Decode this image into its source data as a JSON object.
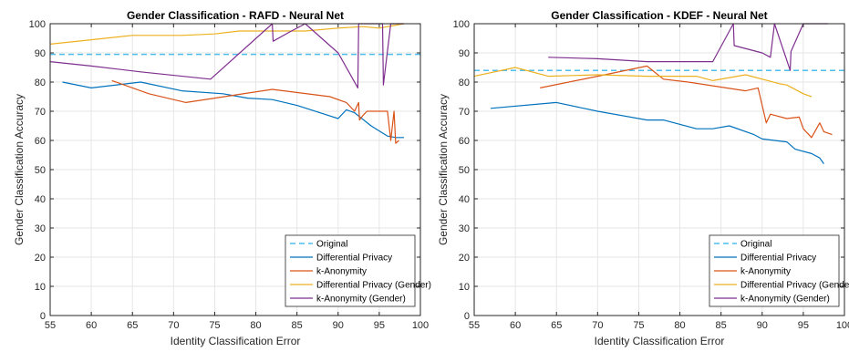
{
  "chart_data": [
    {
      "type": "line",
      "title": "Gender Classification - RAFD - Neural Net",
      "xlabel": "Identity Classification Error",
      "ylabel": "Gender Classification Accuracy",
      "xlim": [
        55,
        100
      ],
      "ylim": [
        0,
        100
      ],
      "xticks": [
        "55",
        "60",
        "65",
        "70",
        "75",
        "80",
        "85",
        "90",
        "95",
        "100"
      ],
      "yticks": [
        "0",
        "10",
        "20",
        "30",
        "40",
        "50",
        "60",
        "70",
        "80",
        "90",
        "100"
      ],
      "grid": true,
      "legend_position": "bottom-right",
      "series": [
        {
          "name": "Original",
          "color": "#4DBEEE",
          "dash": true,
          "x": [
            55,
            100
          ],
          "y": [
            89.5,
            89.5
          ]
        },
        {
          "name": "Differential Privacy",
          "color": "#0072BD",
          "x": [
            56.5,
            60,
            66,
            71,
            76,
            79,
            82,
            85,
            90,
            91,
            92,
            94,
            96,
            97,
            98
          ],
          "y": [
            80,
            78,
            80,
            77,
            76,
            74.5,
            74,
            72,
            67.5,
            70.5,
            69.5,
            65,
            61.5,
            61,
            61
          ]
        },
        {
          "name": "k-Anonymity",
          "color": "#D95319",
          "x": [
            62.5,
            67,
            71.5,
            75,
            82,
            89,
            91,
            92,
            92.5,
            92.6,
            93,
            93.5,
            95,
            96,
            96.4,
            96.8,
            97,
            97.4
          ],
          "y": [
            80.5,
            76,
            73,
            74.5,
            77.5,
            75,
            73,
            70,
            73,
            67,
            68.5,
            70,
            70,
            70,
            60,
            70,
            59,
            60
          ]
        },
        {
          "name": "Differential Privacy (Gender)",
          "color": "#EDB120",
          "x": [
            55,
            60,
            65,
            71,
            75,
            78,
            82,
            86,
            90,
            93,
            95,
            98
          ],
          "y": [
            93,
            94.5,
            96,
            96,
            96.5,
            97.5,
            97.5,
            97.5,
            98.5,
            99,
            98.5,
            100
          ]
        },
        {
          "name": "k-Anonymity (Gender)",
          "color": "#7E2F8E",
          "x": [
            55,
            60,
            66,
            74.5,
            82,
            82.1,
            84,
            86,
            90,
            92.4,
            92.5,
            93,
            95.4,
            95.5,
            96.4,
            96.5,
            98
          ],
          "y": [
            87,
            85.5,
            83.5,
            81,
            100,
            94,
            97,
            100,
            90,
            78,
            100,
            100,
            100,
            79,
            100,
            100,
            100
          ]
        }
      ]
    },
    {
      "type": "line",
      "title": "Gender Classification - KDEF - Neural Net",
      "xlabel": "Identity Classification Error",
      "ylabel": "Gender Classification Accuracy",
      "xlim": [
        55,
        100
      ],
      "ylim": [
        0,
        100
      ],
      "xticks": [
        "55",
        "60",
        "65",
        "70",
        "75",
        "80",
        "85",
        "90",
        "95",
        "100"
      ],
      "yticks": [
        "0",
        "10",
        "20",
        "30",
        "40",
        "50",
        "60",
        "70",
        "80",
        "90",
        "100"
      ],
      "grid": true,
      "legend_position": "bottom-right",
      "series": [
        {
          "name": "Original",
          "color": "#4DBEEE",
          "dash": true,
          "x": [
            55,
            100
          ],
          "y": [
            84,
            84
          ]
        },
        {
          "name": "Differential Privacy",
          "color": "#0072BD",
          "x": [
            57,
            65,
            70,
            76,
            78,
            82,
            84,
            86,
            89,
            90,
            93,
            94,
            96,
            97,
            97.5
          ],
          "y": [
            71,
            73,
            70,
            67,
            67,
            64,
            64,
            65,
            62,
            60.5,
            59.5,
            57,
            55.5,
            54,
            52
          ]
        },
        {
          "name": "k-Anonymity",
          "color": "#D95319",
          "x": [
            63,
            70,
            76,
            78,
            81,
            88,
            89.5,
            90,
            90.5,
            91,
            93,
            94.5,
            95,
            96,
            97,
            97.5,
            98.5
          ],
          "y": [
            78,
            82,
            85.5,
            81,
            80,
            77,
            78,
            72,
            66,
            69,
            67.5,
            68,
            64,
            61,
            66,
            63,
            62
          ]
        },
        {
          "name": "Differential Privacy (Gender)",
          "color": "#EDB120",
          "x": [
            55,
            60,
            64,
            70,
            76,
            82,
            84,
            88,
            92,
            93,
            95,
            96
          ],
          "y": [
            82,
            85,
            82,
            82.5,
            82,
            82,
            80.5,
            82.5,
            79.5,
            79,
            76,
            75
          ]
        },
        {
          "name": "k-Anonymity (Gender)",
          "color": "#7E2F8E",
          "x": [
            64,
            70,
            76,
            84,
            86.5,
            86.6,
            90,
            91,
            91.5,
            93.4,
            93.5,
            95,
            98
          ],
          "y": [
            88.5,
            88,
            87,
            87,
            100,
            92.5,
            90,
            88.5,
            100,
            84,
            90.5,
            100,
            100
          ]
        }
      ]
    }
  ]
}
